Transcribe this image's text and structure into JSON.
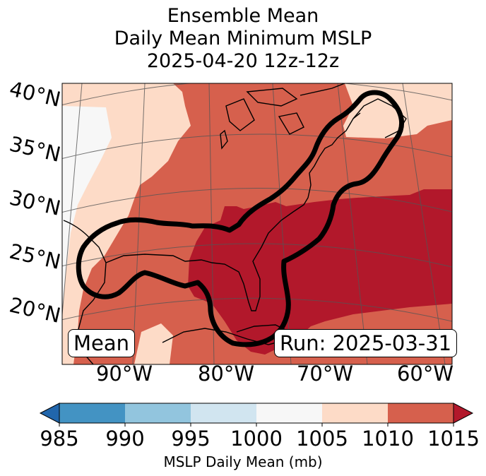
{
  "title": {
    "line1": "Ensemble Mean",
    "line2": "Daily Mean Minimum MSLP",
    "line3": "2025-04-20 12z-12z"
  },
  "map": {
    "lat_labels": [
      "40°N",
      "35°N",
      "30°N",
      "25°N",
      "20°N"
    ],
    "lon_labels": [
      "90°W",
      "80°W",
      "70°W",
      "60°W"
    ],
    "mean_label": "Mean",
    "run_label": "Run: 2025-03-31",
    "field": "MSLP daily mean, ensemble mean",
    "contour": "probability region outline (thick black)"
  },
  "colorbar": {
    "ticks": [
      "985",
      "990",
      "995",
      "1000",
      "1005",
      "1010",
      "1015"
    ],
    "bin_colors": [
      "#4393c3",
      "#92c5de",
      "#d1e5f0",
      "#f7f7f7",
      "#fddbc7",
      "#d6604d",
      "#b2182b"
    ],
    "under_color": "#2166ac",
    "over_color": "#b2182b",
    "label": "MSLP Daily Mean (mb)"
  }
}
